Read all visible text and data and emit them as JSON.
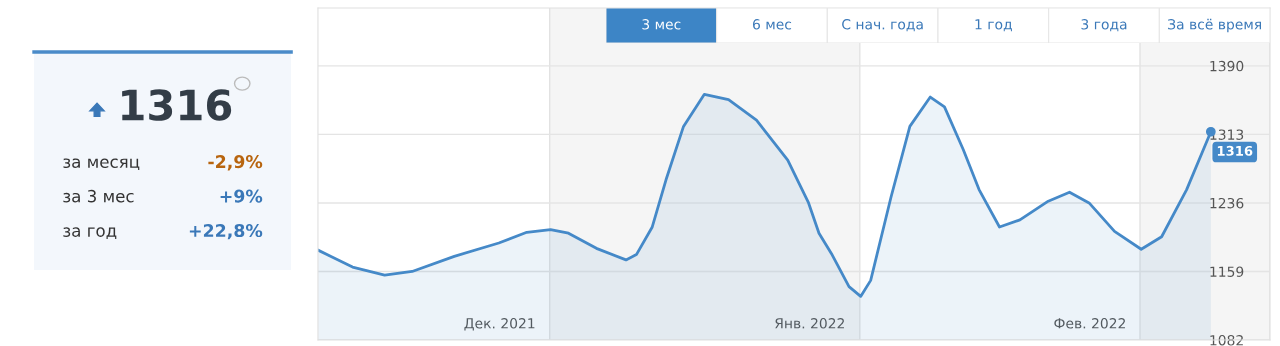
{
  "chart_data": [
    {
      "type": "other",
      "title": "1316",
      "categories": [
        "за месяц",
        "за 3 мес",
        "за год"
      ],
      "values": [
        -2.9,
        9,
        22.8
      ],
      "value_labels": [
        "-2,9%",
        "+9%",
        "+22,8%"
      ]
    },
    {
      "type": "area",
      "x": [
        "2021-12-08T20:00",
        "2021-12-12T07:00",
        "2021-12-15T12:00",
        "2021-12-18T06:00",
        "2021-12-22T11:00",
        "2021-12-26T22:00",
        "2021-12-29T17:00",
        "2022-01-01T02:00",
        "2022-01-02T21:00",
        "2022-01-05T16:00",
        "2022-01-08T15:00",
        "2022-01-09T16:00",
        "2022-01-11T06:00",
        "2022-01-12T15:00",
        "2022-01-14T09:00",
        "2022-01-16T11:00",
        "2022-01-18T21:00",
        "2022-01-21T16:00",
        "2022-01-24T19:00",
        "2022-01-26T21:00",
        "2022-01-27T22:00",
        "2022-01-29T04:00",
        "2022-01-30T22:00",
        "2022-02-01T02:00",
        "2022-02-02T02:00",
        "2022-02-04T03:00",
        "2022-02-06T00:00",
        "2022-02-08T01:00",
        "2022-02-09T11:00",
        "2022-02-11T08:00",
        "2022-02-12T22:00",
        "2022-02-14T23:00",
        "2022-02-17T00:00",
        "2022-02-19T20:00",
        "2022-02-21T23:00",
        "2022-02-23T22:00",
        "2022-02-26T11:00",
        "2022-03-01T03:00",
        "2022-03-03T04:00",
        "2022-03-05T16:00",
        "2022-03-08T02:00"
      ],
      "series": [
        {
          "color": "#4589c8",
          "values": [
            1183,
            1164,
            1155,
            1159,
            1176,
            1191,
            1203,
            1206,
            1202,
            1185,
            1172,
            1178,
            1209,
            1262,
            1322,
            1358,
            1352,
            1329,
            1284,
            1236,
            1202,
            1179,
            1142,
            1131,
            1149,
            1243,
            1322,
            1355,
            1344,
            1296,
            1251,
            1209,
            1217,
            1238,
            1248,
            1236,
            1204,
            1184,
            1198,
            1251,
            1316
          ],
          "value_labels": [
            null,
            null,
            null,
            null,
            null,
            null,
            null,
            null,
            null,
            null,
            null,
            null,
            null,
            null,
            null,
            null,
            null,
            null,
            null,
            null,
            null,
            null,
            null,
            null,
            null,
            null,
            null,
            null,
            null,
            null,
            null,
            null,
            null,
            null,
            null,
            null,
            null,
            null,
            null,
            null,
            "1316"
          ]
        }
      ],
      "xlim": [
        "2021-12-08T20:00",
        "2022-03-14"
      ],
      "xticks": [
        {
          "value": "2021-12-27",
          "label": "Дек. 2021"
        },
        {
          "value": "2022-01-27",
          "label": "Янв. 2022"
        },
        {
          "value": "2022-02-24",
          "label": "Фев. 2022"
        }
      ],
      "ylim": [
        1082,
        1455
      ],
      "yticks": [
        1082,
        1159,
        1236,
        1313,
        1390
      ],
      "grid": "y",
      "bands": [
        {
          "axis": "x",
          "from": "2022-01-01",
          "to": "2022-02-01",
          "color": "#f5f5f5"
        },
        {
          "axis": "x",
          "from": "2022-03-01",
          "to": "2022-03-14",
          "color": "#f5f5f5"
        }
      ]
    },
    {
      "type": "other",
      "categories": [
        "3 мес",
        "6 мес",
        "С нач. года",
        "1 год",
        "3 года",
        "За всё время"
      ],
      "colors": [
        "#3d85c6",
        "#ffffff",
        "#ffffff",
        "#ffffff",
        "#ffffff",
        "#ffffff"
      ]
    }
  ]
}
